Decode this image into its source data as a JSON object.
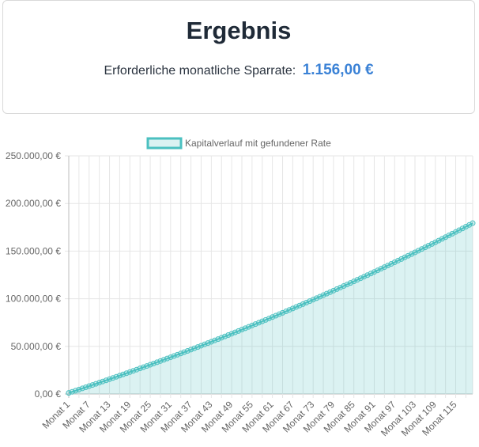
{
  "result": {
    "title": "Ergebnis",
    "label": "Erforderliche monatliche Sparrate:",
    "value": "1.156,00 €"
  },
  "colors": {
    "line": "#4bc0c0",
    "fill": "#4bc0c0",
    "accent": "#3b82d6"
  },
  "chart_data": {
    "type": "area",
    "title": "",
    "xlabel": "",
    "ylabel": "",
    "legend": {
      "position": "top-center"
    },
    "grid": true,
    "ylim": [
      0,
      250000
    ],
    "yticks": [
      "0,00 €",
      "50.000,00 €",
      "100.000,00 €",
      "150.000,00 €",
      "200.000,00 €",
      "250.000,00 €"
    ],
    "xticks": [
      "Monat 1",
      "Monat 7",
      "Monat 13",
      "Monat 19",
      "Monat 25",
      "Monat 31",
      "Monat 37",
      "Monat 43",
      "Monat 49",
      "Monat 55",
      "Monat 61",
      "Monat 67",
      "Monat 73",
      "Monat 79",
      "Monat 85",
      "Monat 91",
      "Monat 97",
      "Monat 103",
      "Monat 109",
      "Monat 115"
    ],
    "series": [
      {
        "name": "Kapitalverlauf mit gefundener Rate",
        "x_start_month": 1,
        "x_end_month": 120,
        "values": [
          1156,
          2331,
          3510,
          4695,
          5884,
          7078,
          8277,
          9481,
          10690,
          11904,
          13123,
          14347,
          15576,
          16810,
          18049,
          19293,
          20542,
          21796,
          23055,
          24320,
          25589,
          26864,
          28143,
          29428,
          30718,
          32013,
          33313,
          34619,
          35930,
          37246,
          38567,
          39894,
          41226,
          42563,
          43906,
          45254,
          46607,
          47966,
          49331,
          50700,
          52076,
          53456,
          54842,
          56234,
          57631,
          59034,
          60442,
          61856,
          63276,
          64701,
          66132,
          67568,
          69010,
          70458,
          71911,
          73370,
          74835,
          76305,
          77782,
          79264,
          80751,
          82245,
          83744,
          85249,
          86760,
          88277,
          89800,
          91328,
          92863,
          94403,
          95949,
          97502,
          99060,
          100624,
          102194,
          103771,
          105353,
          106941,
          108536,
          110136,
          111743,
          113356,
          114975,
          116600,
          118231,
          119868,
          121512,
          123162,
          124818,
          126480,
          128149,
          129824,
          131505,
          133192,
          134886,
          136586,
          138293,
          140006,
          141725,
          143451,
          145183,
          146922,
          148667,
          150419,
          152177,
          153942,
          155713,
          157491,
          159276,
          161067,
          162865,
          164670,
          166481,
          168299,
          170124,
          171956,
          173794,
          175639,
          177491,
          179350
        ]
      }
    ]
  }
}
